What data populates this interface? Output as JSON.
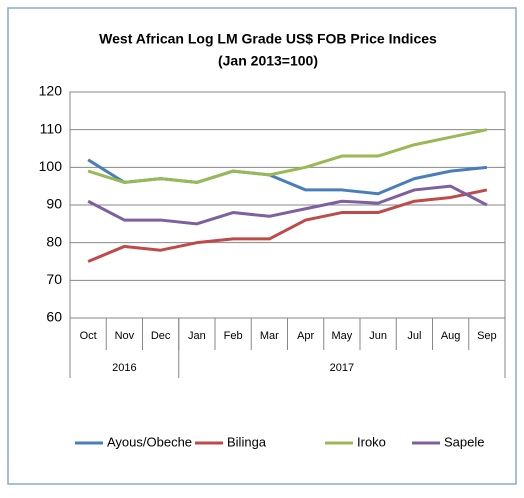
{
  "chart_data": {
    "type": "line",
    "title": [
      "West African Log LM Grade US$ FOB Price Indices",
      "(Jan 2013=100)"
    ],
    "categories": [
      "Oct",
      "Nov",
      "Dec",
      "Jan",
      "Feb",
      "Mar",
      "Apr",
      "May",
      "Jun",
      "Jul",
      "Aug",
      "Sep"
    ],
    "groups": [
      {
        "label": "2016",
        "count": 3
      },
      {
        "label": "2017",
        "count": 9
      }
    ],
    "series": [
      {
        "name": "Ayous/Obeche",
        "color": "#4a7ebb",
        "values": [
          102,
          96,
          97,
          96,
          99,
          98,
          94,
          94,
          93,
          97,
          99,
          100
        ]
      },
      {
        "name": "Bilinga",
        "color": "#be4b48",
        "values": [
          75,
          79,
          78,
          80,
          81,
          81,
          86,
          88,
          88,
          91,
          92,
          94
        ]
      },
      {
        "name": "Iroko",
        "color": "#98b954",
        "values": [
          99,
          96,
          97,
          96,
          99,
          98,
          100,
          103,
          103,
          106,
          108,
          110
        ]
      },
      {
        "name": "Sapele",
        "color": "#7d60a0",
        "values": [
          91,
          86,
          86,
          85,
          88,
          87,
          89,
          91,
          90.5,
          94,
          95,
          90
        ]
      }
    ],
    "ylim": [
      60,
      120
    ],
    "yticks": [
      60,
      70,
      80,
      90,
      100,
      110,
      120
    ],
    "grid": true,
    "legend": "bottom"
  }
}
